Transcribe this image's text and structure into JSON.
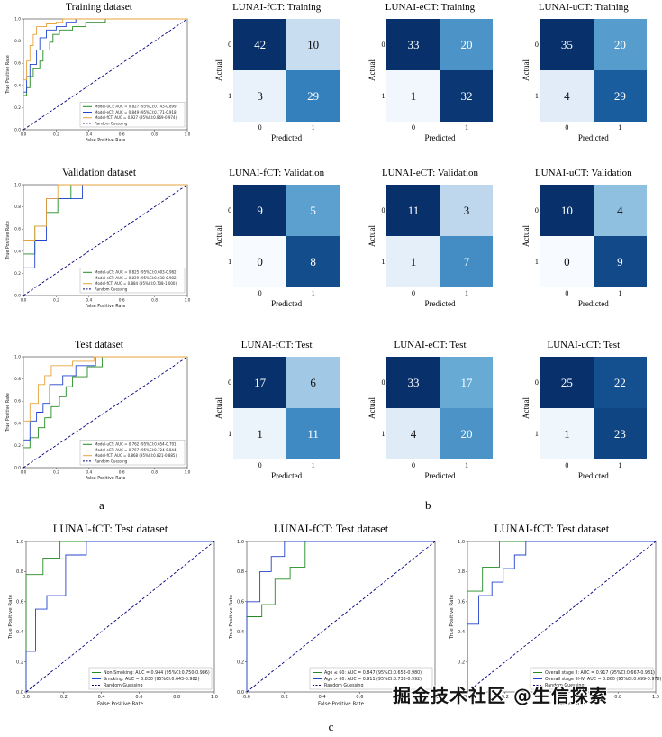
{
  "labels": {
    "a": "a",
    "b": "b",
    "c": "c"
  },
  "watermark": "掘金技术社区 @生信探索",
  "colors": {
    "green": "#228b22",
    "blue": "#2444cc",
    "orange": "#e6a33c",
    "navy": "#000080",
    "heatmap_dark": "#08306b",
    "heatmap_light": "#f7fbff"
  },
  "chart_data": [
    {
      "id": "roc-training",
      "type": "line",
      "title": "Training dataset",
      "xlabel": "False Positive Rate",
      "ylabel": "True Positive Rate",
      "xlim": [
        0,
        1
      ],
      "ylim": [
        0,
        1
      ],
      "ticks": [
        0,
        0.2,
        0.4,
        0.6,
        0.8,
        1
      ],
      "grid": false,
      "legend_position": "lower right",
      "series": [
        {
          "name": "Model-uCT: AUC = 0.827 (95%CI:0.743-0.899)",
          "color": "#228b22",
          "step": true,
          "points": [
            [
              0,
              0
            ],
            [
              0,
              0.31
            ],
            [
              0.02,
              0.38
            ],
            [
              0.04,
              0.48
            ],
            [
              0.06,
              0.55
            ],
            [
              0.1,
              0.62
            ],
            [
              0.12,
              0.72
            ],
            [
              0.16,
              0.79
            ],
            [
              0.18,
              0.86
            ],
            [
              0.22,
              0.9
            ],
            [
              0.3,
              0.93
            ],
            [
              0.38,
              0.97
            ],
            [
              0.5,
              1.0
            ],
            [
              1,
              1
            ]
          ]
        },
        {
          "name": "Model-eCT: AUC = 0.849 (95%CI:0.771-0.918)",
          "color": "#2444cc",
          "step": true,
          "points": [
            [
              0,
              0
            ],
            [
              0,
              0.34
            ],
            [
              0.02,
              0.48
            ],
            [
              0.04,
              0.59
            ],
            [
              0.08,
              0.72
            ],
            [
              0.1,
              0.83
            ],
            [
              0.14,
              0.9
            ],
            [
              0.2,
              0.93
            ],
            [
              0.26,
              0.97
            ],
            [
              0.32,
              1.0
            ],
            [
              1,
              1
            ]
          ]
        },
        {
          "name": "Model-fCT: AUC = 0.927 (95%CI:0.869-0.974)",
          "color": "#e6a33c",
          "step": true,
          "points": [
            [
              0,
              0
            ],
            [
              0,
              0.45
            ],
            [
              0.02,
              0.62
            ],
            [
              0.04,
              0.76
            ],
            [
              0.06,
              0.86
            ],
            [
              0.08,
              0.93
            ],
            [
              0.14,
              0.955
            ],
            [
              0.2,
              0.97
            ],
            [
              0.24,
              1.0
            ],
            [
              1,
              1
            ]
          ]
        },
        {
          "name": "Random Guessing",
          "color": "#000080",
          "step": false,
          "dashed": true,
          "points": [
            [
              0,
              0
            ],
            [
              1,
              1
            ]
          ]
        }
      ]
    },
    {
      "id": "roc-validation",
      "type": "line",
      "title": "Validation dataset",
      "xlabel": "False Positive Rate",
      "ylabel": "True Positive Rate",
      "xlim": [
        0,
        1
      ],
      "ylim": [
        0,
        1
      ],
      "ticks": [
        0,
        0.2,
        0.4,
        0.6,
        0.8,
        1
      ],
      "grid": false,
      "legend_position": "lower right",
      "series": [
        {
          "name": "Model-uCT: AUC = 0.825 (95%CI:0.603-0.982)",
          "color": "#228b22",
          "step": true,
          "points": [
            [
              0,
              0
            ],
            [
              0,
              0.375
            ],
            [
              0.07,
              0.625
            ],
            [
              0.14,
              0.75
            ],
            [
              0.21,
              0.875
            ],
            [
              0.29,
              1.0
            ],
            [
              1,
              1
            ]
          ]
        },
        {
          "name": "Model-eCT: AUC = 0.839 (95%CI:0.638-0.982)",
          "color": "#2444cc",
          "step": true,
          "points": [
            [
              0,
              0
            ],
            [
              0,
              0.25
            ],
            [
              0.07,
              0.5
            ],
            [
              0.14,
              0.875
            ],
            [
              0.36,
              1.0
            ],
            [
              1,
              1
            ]
          ]
        },
        {
          "name": "Model-fCT: AUC = 0.884 (95%CI:0.708-1.000)",
          "color": "#e6a33c",
          "step": true,
          "points": [
            [
              0,
              0
            ],
            [
              0,
              0.5
            ],
            [
              0.07,
              0.625
            ],
            [
              0.14,
              0.875
            ],
            [
              0.21,
              1.0
            ],
            [
              1,
              1
            ]
          ]
        },
        {
          "name": "Random Guessing",
          "color": "#000080",
          "step": false,
          "dashed": true,
          "points": [
            [
              0,
              0
            ],
            [
              1,
              1
            ]
          ]
        }
      ]
    },
    {
      "id": "roc-test",
      "type": "line",
      "title": "Test dataset",
      "xlabel": "False Positive Rate",
      "ylabel": "True Positive Rate",
      "xlim": [
        0,
        1
      ],
      "ylim": [
        0,
        1
      ],
      "ticks": [
        0,
        0.2,
        0.4,
        0.6,
        0.8,
        1
      ],
      "grid": false,
      "legend_position": "lower right",
      "series": [
        {
          "name": "Model-uCT: AUC = 0.762 (95%CI:0.654-0.791)",
          "color": "#228b22",
          "step": true,
          "points": [
            [
              0,
              0
            ],
            [
              0,
              0.18
            ],
            [
              0.04,
              0.27
            ],
            [
              0.09,
              0.36
            ],
            [
              0.13,
              0.45
            ],
            [
              0.17,
              0.55
            ],
            [
              0.22,
              0.64
            ],
            [
              0.26,
              0.73
            ],
            [
              0.3,
              0.82
            ],
            [
              0.39,
              0.91
            ],
            [
              0.48,
              1.0
            ],
            [
              1,
              1
            ]
          ]
        },
        {
          "name": "Model-eCT: AUC = 0.797 (95%CI:0.724-0.844)",
          "color": "#2444cc",
          "step": true,
          "points": [
            [
              0,
              0
            ],
            [
              0,
              0.25
            ],
            [
              0.04,
              0.42
            ],
            [
              0.08,
              0.5
            ],
            [
              0.12,
              0.58
            ],
            [
              0.16,
              0.75
            ],
            [
              0.24,
              0.83
            ],
            [
              0.32,
              0.92
            ],
            [
              0.44,
              1.0
            ],
            [
              1,
              1
            ]
          ]
        },
        {
          "name": "Model-fCT: AUC = 0.868 (95%CI:0.821-0.885)",
          "color": "#e6a33c",
          "step": true,
          "points": [
            [
              0,
              0
            ],
            [
              0,
              0.42
            ],
            [
              0.04,
              0.58
            ],
            [
              0.09,
              0.75
            ],
            [
              0.13,
              0.83
            ],
            [
              0.17,
              0.92
            ],
            [
              0.3,
              0.96
            ],
            [
              0.43,
              1.0
            ],
            [
              1,
              1
            ]
          ]
        },
        {
          "name": "Random Guessing",
          "color": "#000080",
          "step": false,
          "dashed": true,
          "points": [
            [
              0,
              0
            ],
            [
              1,
              1
            ]
          ]
        }
      ]
    },
    {
      "id": "cm-fct-training",
      "type": "heatmap",
      "title": "LUNAI-fCT: Training",
      "xlabel": "Predicted",
      "ylabel": "Actual",
      "x_ticks": [
        "0",
        "1"
      ],
      "y_ticks": [
        "0",
        "1"
      ],
      "colormap": "Blues",
      "matrix": [
        [
          42,
          10
        ],
        [
          3,
          29
        ]
      ]
    },
    {
      "id": "cm-ect-training",
      "type": "heatmap",
      "title": "LUNAI-eCT: Training",
      "xlabel": "Predicted",
      "ylabel": "Actual",
      "x_ticks": [
        "0",
        "1"
      ],
      "y_ticks": [
        "0",
        "1"
      ],
      "colormap": "Blues",
      "matrix": [
        [
          33,
          20
        ],
        [
          1,
          32
        ]
      ]
    },
    {
      "id": "cm-uct-training",
      "type": "heatmap",
      "title": "LUNAI-uCT: Training",
      "xlabel": "Predicted",
      "ylabel": "Actual",
      "x_ticks": [
        "0",
        "1"
      ],
      "y_ticks": [
        "0",
        "1"
      ],
      "colormap": "Blues",
      "matrix": [
        [
          35,
          20
        ],
        [
          4,
          29
        ]
      ]
    },
    {
      "id": "cm-fct-validation",
      "type": "heatmap",
      "title": "LUNAI-fCT: Validation",
      "xlabel": "Predicted",
      "ylabel": "Actual",
      "x_ticks": [
        "0",
        "1"
      ],
      "y_ticks": [
        "0",
        "1"
      ],
      "colormap": "Blues",
      "matrix": [
        [
          9,
          5
        ],
        [
          0,
          8
        ]
      ]
    },
    {
      "id": "cm-ect-validation",
      "type": "heatmap",
      "title": "LUNAI-eCT: Validation",
      "xlabel": "Predicted",
      "ylabel": "Actual",
      "x_ticks": [
        "0",
        "1"
      ],
      "y_ticks": [
        "0",
        "1"
      ],
      "colormap": "Blues",
      "matrix": [
        [
          11,
          3
        ],
        [
          1,
          7
        ]
      ]
    },
    {
      "id": "cm-uct-validation",
      "type": "heatmap",
      "title": "LUNAI-uCT: Validation",
      "xlabel": "Predicted",
      "ylabel": "Actual",
      "x_ticks": [
        "0",
        "1"
      ],
      "y_ticks": [
        "0",
        "1"
      ],
      "colormap": "Blues",
      "matrix": [
        [
          10,
          4
        ],
        [
          0,
          9
        ]
      ]
    },
    {
      "id": "cm-fct-test",
      "type": "heatmap",
      "title": "LUNAI-fCT: Test",
      "xlabel": "Predicted",
      "ylabel": "Actual",
      "x_ticks": [
        "0",
        "1"
      ],
      "y_ticks": [
        "0",
        "1"
      ],
      "colormap": "Blues",
      "matrix": [
        [
          17,
          6
        ],
        [
          1,
          11
        ]
      ]
    },
    {
      "id": "cm-ect-test",
      "type": "heatmap",
      "title": "LUNAI-eCT: Test",
      "xlabel": "Predicted",
      "ylabel": "Actual",
      "x_ticks": [
        "0",
        "1"
      ],
      "y_ticks": [
        "0",
        "1"
      ],
      "colormap": "Blues",
      "matrix": [
        [
          33,
          17
        ],
        [
          4,
          20
        ]
      ]
    },
    {
      "id": "cm-uct-test",
      "type": "heatmap",
      "title": "LUNAI-uCT: Test",
      "xlabel": "Predicted",
      "ylabel": "Actual",
      "x_ticks": [
        "0",
        "1"
      ],
      "y_ticks": [
        "0",
        "1"
      ],
      "colormap": "Blues",
      "matrix": [
        [
          25,
          22
        ],
        [
          1,
          23
        ]
      ]
    },
    {
      "id": "roc-test-smoking",
      "type": "line",
      "title": "LUNAI-fCT: Test dataset",
      "xlabel": "False Positive Rate",
      "ylabel": "True Positive Rate",
      "xlim": [
        0,
        1
      ],
      "ylim": [
        0,
        1
      ],
      "ticks": [
        0,
        0.2,
        0.4,
        0.6,
        0.8,
        1
      ],
      "grid": false,
      "legend_position": "lower right",
      "series": [
        {
          "name": "Non-Smoking: AUC = 0.944 (95%CI:0.750-0.986)",
          "color": "#228b22",
          "step": true,
          "points": [
            [
              0,
              0
            ],
            [
              0,
              0.78
            ],
            [
              0.09,
              0.89
            ],
            [
              0.18,
              1.0
            ],
            [
              1,
              1
            ]
          ]
        },
        {
          "name": "Smoking: AUC = 0.830 (95%CI:0.643-0.982)",
          "color": "#2444cc",
          "step": true,
          "points": [
            [
              0,
              0
            ],
            [
              0,
              0.27
            ],
            [
              0.05,
              0.55
            ],
            [
              0.11,
              0.64
            ],
            [
              0.21,
              0.91
            ],
            [
              0.32,
              1.0
            ],
            [
              1,
              1
            ]
          ]
        },
        {
          "name": "Random Guessing",
          "color": "#000080",
          "step": false,
          "dashed": true,
          "points": [
            [
              0,
              0
            ],
            [
              1,
              1
            ]
          ]
        }
      ]
    },
    {
      "id": "roc-test-age",
      "type": "line",
      "title": "LUNAI-fCT: Test dataset",
      "xlabel": "False Positive Rate",
      "ylabel": "True Positive Rate",
      "xlim": [
        0,
        1
      ],
      "ylim": [
        0,
        1
      ],
      "ticks": [
        0,
        0.2,
        0.4,
        0.6,
        0.8,
        1
      ],
      "grid": false,
      "legend_position": "lower right",
      "series": [
        {
          "name": "Age ≤ 60: AUC = 0.847 (95%CI:0.653-0.980)",
          "color": "#228b22",
          "step": true,
          "points": [
            [
              0,
              0
            ],
            [
              0,
              0.5
            ],
            [
              0.08,
              0.58
            ],
            [
              0.15,
              0.75
            ],
            [
              0.23,
              0.83
            ],
            [
              0.31,
              1.0
            ],
            [
              1,
              1
            ]
          ]
        },
        {
          "name": "Age > 60: AUC = 0.911 (95%CI:0.733-0.992)",
          "color": "#2444cc",
          "step": true,
          "points": [
            [
              0,
              0
            ],
            [
              0,
              0.6
            ],
            [
              0.07,
              0.8
            ],
            [
              0.13,
              0.9
            ],
            [
              0.2,
              1.0
            ],
            [
              1,
              1
            ]
          ]
        },
        {
          "name": "Random Guessing",
          "color": "#000080",
          "step": false,
          "dashed": true,
          "points": [
            [
              0,
              0
            ],
            [
              1,
              1
            ]
          ]
        }
      ]
    },
    {
      "id": "roc-test-stage",
      "type": "line",
      "title": "LUNAI-fCT: Test dataset",
      "xlabel": "False Positive Rate",
      "ylabel": "True Positive Rate",
      "xlim": [
        0,
        1
      ],
      "ylim": [
        0,
        1
      ],
      "ticks": [
        0,
        0.2,
        0.4,
        0.6,
        0.8,
        1
      ],
      "grid": false,
      "legend_position": "lower right",
      "series": [
        {
          "name": "Overall stage II: AUC = 0.917 (95%CI:0.667-0.981)",
          "color": "#228b22",
          "step": true,
          "points": [
            [
              0,
              0
            ],
            [
              0,
              0.67
            ],
            [
              0.08,
              0.83
            ],
            [
              0.17,
              1.0
            ],
            [
              1,
              1
            ]
          ]
        },
        {
          "name": "Overall stage III-IV: AUC = 0.860 (95%CI:0.699-0.978)",
          "color": "#2444cc",
          "step": true,
          "points": [
            [
              0,
              0
            ],
            [
              0,
              0.45
            ],
            [
              0.06,
              0.64
            ],
            [
              0.13,
              0.73
            ],
            [
              0.19,
              0.82
            ],
            [
              0.25,
              0.91
            ],
            [
              0.31,
              1.0
            ],
            [
              1,
              1
            ]
          ]
        },
        {
          "name": "Random Guessing",
          "color": "#000080",
          "step": false,
          "dashed": true,
          "points": [
            [
              0,
              0
            ],
            [
              1,
              1
            ]
          ]
        }
      ]
    }
  ]
}
